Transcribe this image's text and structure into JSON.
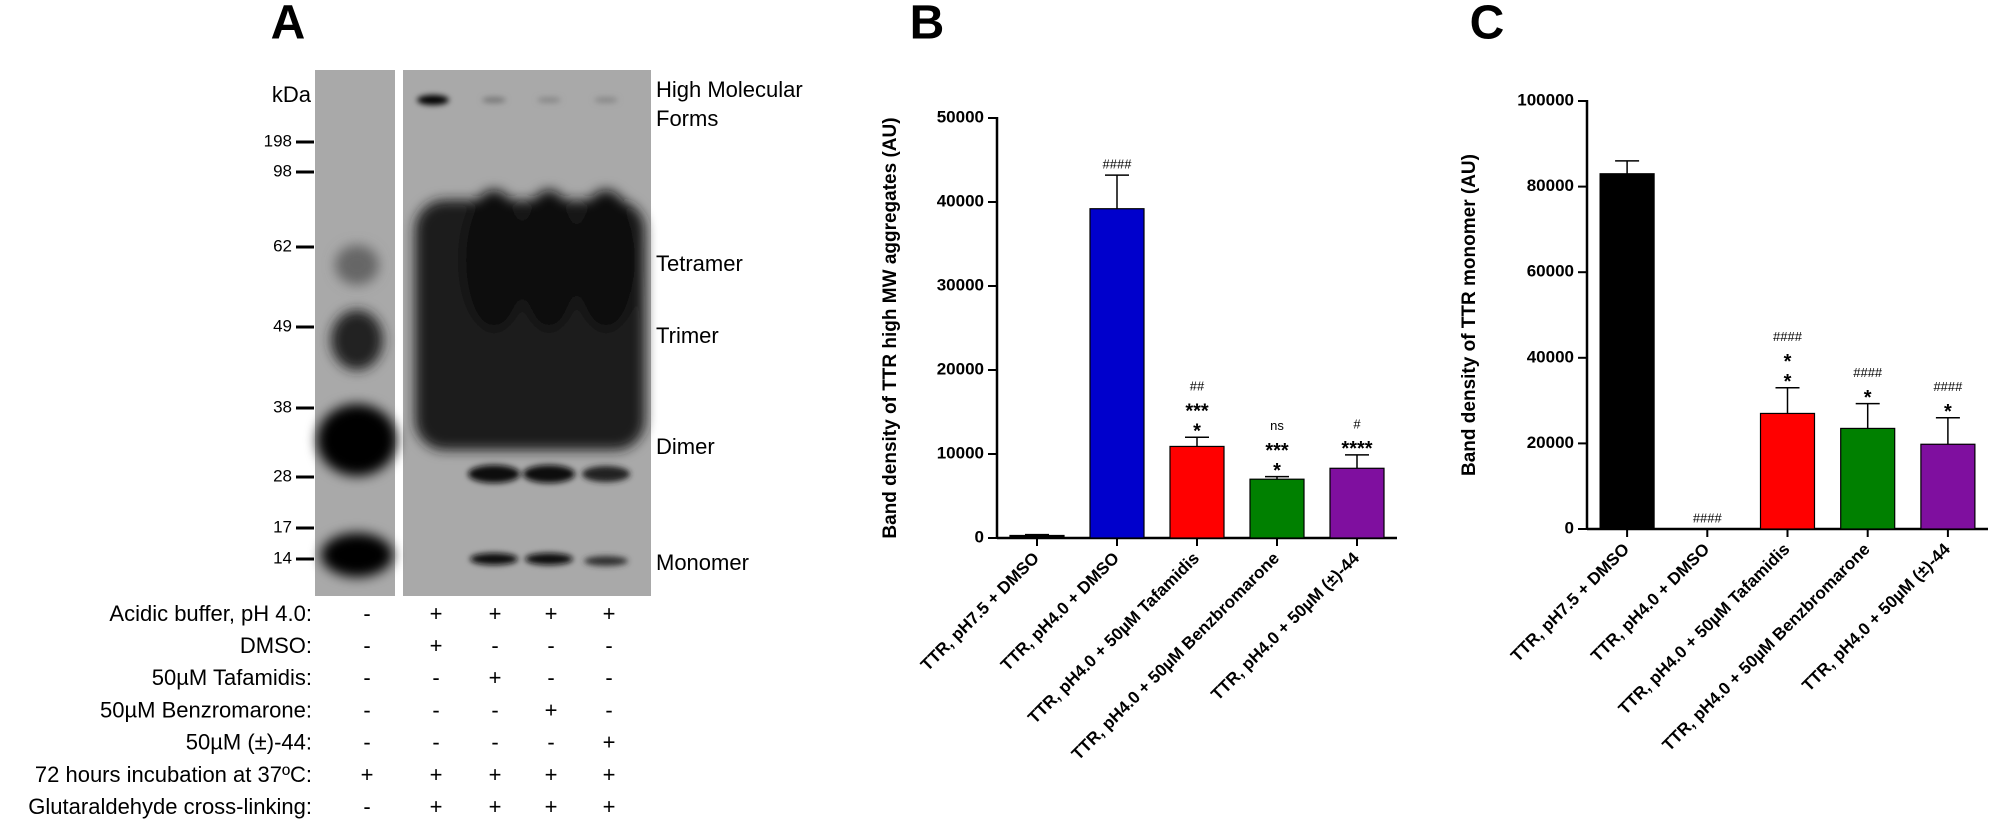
{
  "blot": {
    "panel": "A",
    "unit": "kDa",
    "markers": [
      198,
      98,
      62,
      49,
      38,
      28,
      17,
      14
    ],
    "bands": [
      "High Molecular Forms",
      "Tetramer",
      "Trimer",
      "Dimer",
      "Monomer"
    ],
    "conditions": [
      {
        "label": "Acidic buffer, pH 4.0:",
        "lanes": [
          "-",
          "+",
          "+",
          "+",
          "+"
        ]
      },
      {
        "label": "DMSO:",
        "lanes": [
          "-",
          "+",
          "-",
          "-",
          "-"
        ]
      },
      {
        "label": "50µM Tafamidis:",
        "lanes": [
          "-",
          "-",
          "+",
          "-",
          "-"
        ]
      },
      {
        "label": "50µM Benzromarone:",
        "lanes": [
          "-",
          "-",
          "-",
          "+",
          "-"
        ]
      },
      {
        "label": "50µM (±)-44:",
        "lanes": [
          "-",
          "-",
          "-",
          "-",
          "+"
        ]
      },
      {
        "label": "72 hours incubation at 37ºC:",
        "lanes": [
          "+",
          "+",
          "+",
          "+",
          "+"
        ]
      },
      {
        "label": "Glutaraldehyde cross-linking:",
        "lanes": [
          "-",
          "+",
          "+",
          "+",
          "+"
        ]
      }
    ]
  },
  "chart_data": [
    {
      "type": "bar",
      "panel": "B",
      "y_label": "Band density of TTR high MW aggregates (AU)",
      "categories": [
        "TTR, pH7.5 + DMSO",
        "TTR, pH4.0 + DMSO",
        "TTR, pH4.0 + 50µM Tafamidis",
        "TTR, pH4.0 + 50µM Benzbromarone",
        "TTR, pH4.0 + 50µM (±)-44"
      ],
      "values": [
        300,
        39200,
        10900,
        7000,
        8300
      ],
      "errors": [
        100,
        4000,
        1100,
        300,
        1600
      ],
      "colors": [
        "#000000",
        "#0000cc",
        "#ff0000",
        "#008000",
        "#7f0f9f"
      ],
      "annotations": [
        [],
        [
          "####"
        ],
        [
          "##",
          "***",
          "*"
        ],
        [
          "ns",
          "***",
          "*"
        ],
        [
          "#",
          "****"
        ]
      ],
      "ylim": [
        0,
        50000
      ],
      "yticks": [
        0,
        10000,
        20000,
        30000,
        40000,
        50000
      ]
    },
    {
      "type": "bar",
      "panel": "C",
      "y_label": "Band density of TTR monomer (AU)",
      "categories": [
        "TTR, pH7.5 + DMSO",
        "TTR, pH4.0 + DMSO",
        "TTR, pH4.0 + 50µM Tafamidis",
        "TTR, pH4.0 + 50µM Benzbromarone",
        "TTR, pH4.0 + 50µM (±)-44"
      ],
      "values": [
        83000,
        0,
        27000,
        23500,
        19800
      ],
      "errors": [
        3000,
        null,
        6000,
        5800,
        6200
      ],
      "colors": [
        "#000000",
        "#0000cc",
        "#ff0000",
        "#008000",
        "#7f0f9f"
      ],
      "annotations": [
        [],
        [
          "####"
        ],
        [
          "####",
          "*",
          "*"
        ],
        [
          "####",
          "*"
        ],
        [
          "####",
          "*"
        ]
      ],
      "ylim": [
        0,
        100000
      ],
      "yticks": [
        0,
        20000,
        40000,
        60000,
        80000,
        100000
      ]
    }
  ]
}
